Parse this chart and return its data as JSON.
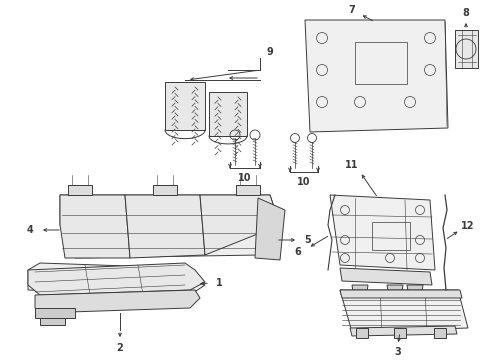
{
  "bg": "#ffffff",
  "lc": "#3a3a3a",
  "fc": "#f5f5f5",
  "lw": 0.7,
  "lt": 0.4,
  "fs": 7,
  "fig_w": 4.89,
  "fig_h": 3.6,
  "dpi": 100
}
